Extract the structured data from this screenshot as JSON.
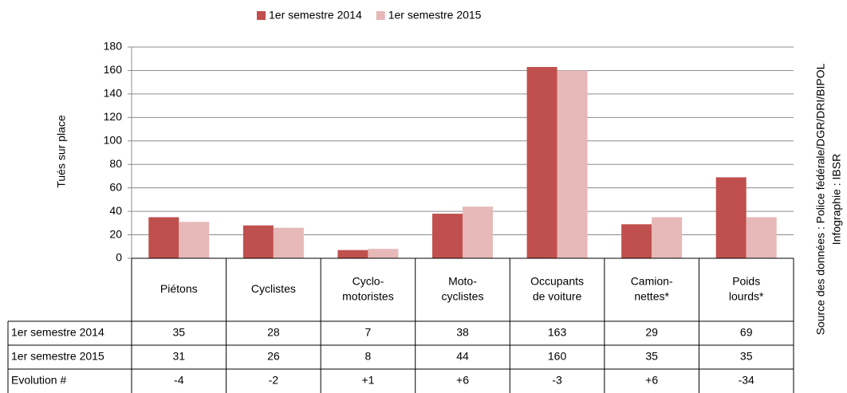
{
  "chart_data": {
    "type": "bar",
    "y_label": "Tués sur place",
    "source": "Source des données : Police fédérale/DGR/DRI/BIPOL",
    "credit": "Infographie : IBSR",
    "categories": [
      [
        "Piétons"
      ],
      [
        "Cyclistes"
      ],
      [
        "Cyclo-",
        "motoristes"
      ],
      [
        "Moto-",
        "cyclistes"
      ],
      [
        "Occupants",
        "de voiture"
      ],
      [
        "Camion-",
        "nettes*"
      ],
      [
        "Poids",
        "lourds*"
      ]
    ],
    "series": [
      {
        "name": "1er semestre 2014",
        "color": "#c0504d",
        "values": [
          35,
          28,
          7,
          38,
          163,
          29,
          69
        ]
      },
      {
        "name": "1er semestre 2015",
        "color": "#e6b9b8",
        "values": [
          31,
          26,
          8,
          44,
          160,
          35,
          35
        ]
      }
    ],
    "evolution": {
      "name": "Evolution #",
      "values": [
        -4,
        -2,
        1,
        6,
        -3,
        6,
        -34
      ],
      "value_labels": [
        "-4",
        "-2",
        "+1",
        "+6",
        "-3",
        "+6",
        "-34"
      ]
    },
    "ylim": [
      0,
      180
    ],
    "yticks": [
      0,
      20,
      40,
      60,
      80,
      100,
      120,
      140,
      160,
      180
    ],
    "grid": true,
    "legend": "top"
  }
}
